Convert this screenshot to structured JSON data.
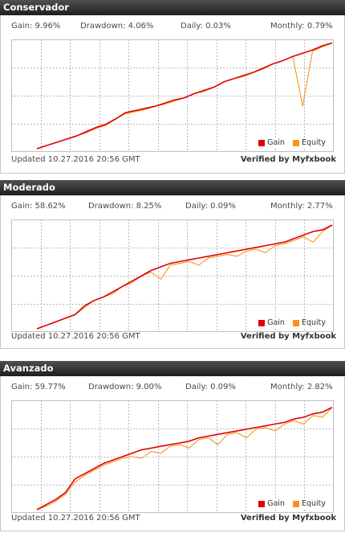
{
  "widgets": [
    {
      "title": "Conservador",
      "stats": {
        "gain": "Gain: 9.96%",
        "drawdown": "Drawdown: 4.06%",
        "daily": "Daily: 0.03%",
        "monthly": "Monthly: 0.79%"
      },
      "updated": "Updated 10.27.2016 20:56 GMT",
      "verified": "Verified by Myfxbook",
      "legend": {
        "gain": "Gain",
        "equity": "Equity"
      }
    },
    {
      "title": "Moderado",
      "stats": {
        "gain": "Gain: 58.62%",
        "drawdown": "Drawdown: 8.25%",
        "daily": "Daily: 0.09%",
        "monthly": "Monthly: 2.77%"
      },
      "updated": "Updated 10.27.2016 20:56 GMT",
      "verified": "Verified by Myfxbook",
      "legend": {
        "gain": "Gain",
        "equity": "Equity"
      }
    },
    {
      "title": "Avanzado",
      "stats": {
        "gain": "Gain: 59.77%",
        "drawdown": "Drawdown: 9.00%",
        "daily": "Daily: 0.09%",
        "monthly": "Monthly: 2.82%"
      },
      "updated": "Updated 10.27.2016 20:56 GMT",
      "verified": "Verified by Myfxbook",
      "legend": {
        "gain": "Gain",
        "equity": "Equity"
      }
    }
  ],
  "colors": {
    "gain": "#e00000",
    "equity": "#f7941d",
    "grid": "#b8b8b8",
    "header": "#1e1e1e"
  },
  "chart_data": [
    {
      "type": "line",
      "title": "Conservador",
      "series": [
        {
          "name": "Gain",
          "y": [
            0.0,
            0.3,
            0.6,
            0.9,
            1.2,
            1.6,
            2.0,
            2.3,
            2.8,
            3.4,
            3.6,
            3.8,
            4.0,
            4.3,
            4.6,
            4.8,
            5.2,
            5.5,
            5.8,
            6.3,
            6.6,
            6.9,
            7.2,
            7.6,
            8.0,
            8.3,
            8.7,
            9.0,
            9.3,
            9.7,
            9.96
          ]
        },
        {
          "name": "Equity",
          "y": [
            0.0,
            0.3,
            0.6,
            0.9,
            1.2,
            1.5,
            1.9,
            2.2,
            2.8,
            3.3,
            3.5,
            3.7,
            4.0,
            4.2,
            4.5,
            4.8,
            5.2,
            5.4,
            5.8,
            6.3,
            6.6,
            6.8,
            7.2,
            7.5,
            8.0,
            8.3,
            8.7,
            4.0,
            9.2,
            9.6,
            9.96
          ]
        }
      ],
      "ylim": [
        0,
        10
      ],
      "grid": true,
      "legend": "bottom-right"
    },
    {
      "type": "line",
      "title": "Moderado",
      "series": [
        {
          "name": "Gain",
          "y": [
            0,
            2,
            4,
            6,
            8,
            13,
            16,
            18,
            21,
            24,
            27,
            30,
            33,
            35,
            37,
            38,
            39,
            40,
            41,
            42,
            43,
            44,
            45,
            46,
            47,
            48,
            49,
            51,
            53,
            55,
            56,
            58.62
          ]
        },
        {
          "name": "Equity",
          "y": [
            0,
            2,
            4,
            6,
            8,
            12,
            16,
            18,
            20,
            24,
            26,
            30,
            32,
            28,
            36,
            37,
            38,
            36,
            40,
            41,
            42,
            41,
            44,
            45,
            43,
            47,
            48,
            50,
            52,
            49,
            55,
            58.62
          ]
        }
      ],
      "ylim": [
        0,
        60
      ],
      "grid": true,
      "legend": "bottom-right"
    },
    {
      "type": "line",
      "title": "Avanzado",
      "series": [
        {
          "name": "Gain",
          "y": [
            0,
            3,
            6,
            10,
            18,
            21,
            24,
            27,
            29,
            31,
            33,
            35,
            36,
            37,
            38,
            39,
            40,
            42,
            43,
            44,
            45,
            46,
            47,
            48,
            49,
            50,
            51,
            53,
            54,
            56,
            57,
            59.77
          ]
        },
        {
          "name": "Equity",
          "y": [
            0,
            2,
            5,
            9,
            16,
            20,
            23,
            26,
            28,
            30,
            31,
            30,
            34,
            33,
            37,
            38,
            36,
            41,
            42,
            38,
            44,
            45,
            42,
            47,
            48,
            46,
            50,
            52,
            50,
            55,
            54,
            59.77
          ]
        }
      ],
      "ylim": [
        0,
        62
      ],
      "grid": true,
      "legend": "bottom-right"
    }
  ]
}
